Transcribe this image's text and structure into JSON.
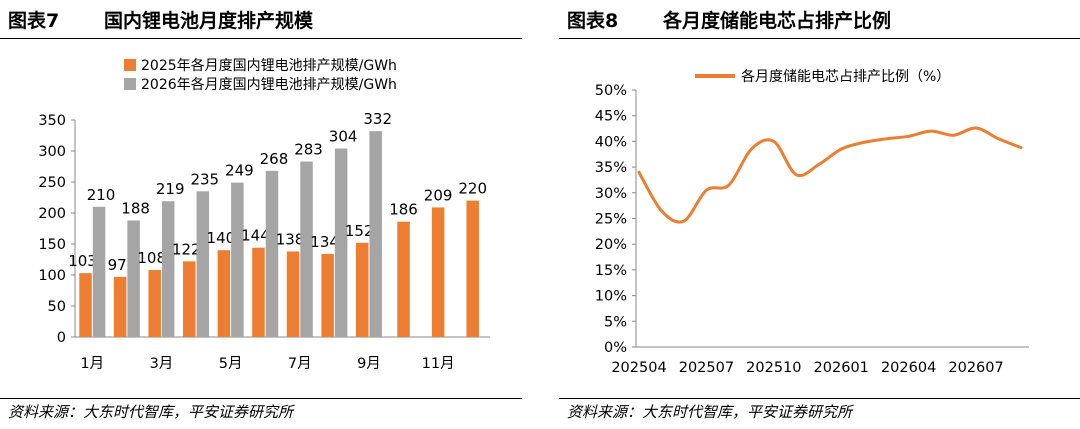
{
  "left_panel": {
    "fig_no": "图表7",
    "title": "国内锂电池月度排产规模",
    "source": "资料来源：大东时代智库，平安证券研究所"
  },
  "right_panel": {
    "fig_no": "图表8",
    "title": "各月度储能电芯占排产比例",
    "source": "资料来源：大东时代智库，平安证券研究所"
  },
  "chart_data": [
    {
      "type": "bar",
      "categories": [
        "1月",
        "2月",
        "3月",
        "4月",
        "5月",
        "6月",
        "7月",
        "8月",
        "9月",
        "10月",
        "11月",
        "12月"
      ],
      "tick_labels": [
        "1月",
        "",
        "3月",
        "",
        "5月",
        "",
        "7月",
        "",
        "9月",
        "",
        "11月",
        ""
      ],
      "series": [
        {
          "name": "2025年各月度国内锂电池排产规模/GWh",
          "color": "#ED7D31",
          "values": [
            103,
            97,
            108,
            122,
            140,
            144,
            138,
            134,
            152,
            186,
            209,
            220
          ]
        },
        {
          "name": "2026年各月度国内锂电池排产规模/GWh",
          "color": "#A5A5A5",
          "values": [
            210,
            188,
            219,
            235,
            249,
            268,
            283,
            304,
            332,
            null,
            null,
            null
          ]
        }
      ],
      "yticks": [
        0,
        50,
        100,
        150,
        200,
        250,
        300,
        350
      ],
      "ylim": [
        0,
        350
      ],
      "legend": "top"
    },
    {
      "type": "line",
      "x": [
        "202504",
        "202505",
        "202506",
        "202507",
        "202508",
        "202509",
        "202510",
        "202511",
        "202512",
        "202601",
        "202602",
        "202603",
        "202604",
        "202605",
        "202606",
        "202607",
        "202608",
        "202609"
      ],
      "xtick_labels": [
        "202504",
        "202507",
        "202510",
        "202601",
        "202604",
        "202607"
      ],
      "series": [
        {
          "name": "各月度储能电芯占排产比例（%）",
          "color": "#ED7D31",
          "values": [
            34,
            26.5,
            24.5,
            30.5,
            31.5,
            38.5,
            40,
            33.5,
            35.5,
            38.5,
            39.8,
            40.5,
            41,
            42,
            41.2,
            42.6,
            40.5,
            38.8
          ]
        }
      ],
      "yticks": [
        "0%",
        "5%",
        "10%",
        "15%",
        "20%",
        "25%",
        "30%",
        "35%",
        "40%",
        "45%",
        "50%"
      ],
      "ylim": [
        0,
        50
      ],
      "legend": "top"
    }
  ]
}
